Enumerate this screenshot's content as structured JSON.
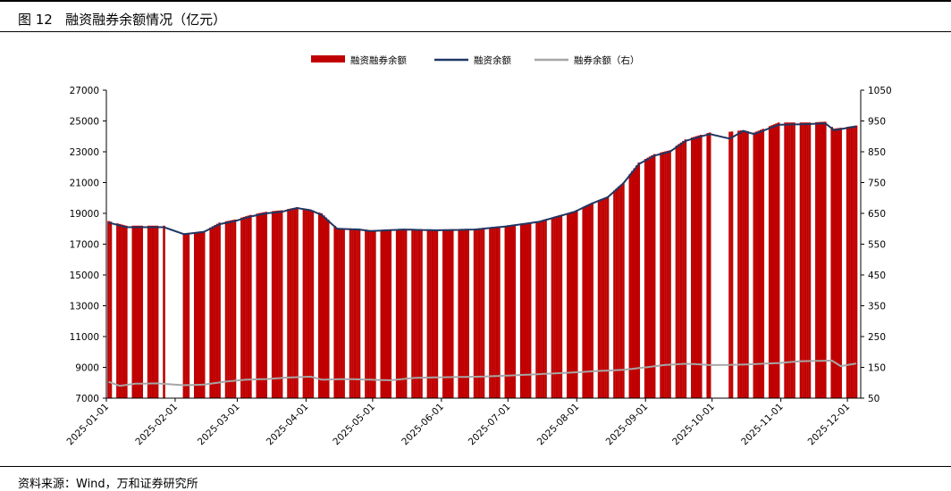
{
  "figure": {
    "title": "图 12   融资融券余额情况（亿元）",
    "source": "资料来源：Wind，万和证券研究所"
  },
  "chart_data": {
    "type": "bar+line",
    "legend": [
      "融资融券余额",
      "融资余额",
      "融券余额（右）"
    ],
    "legend_position": "top-center",
    "colors": {
      "bars": "#c00000",
      "financing_line": "#1f3864",
      "lending_line": "#a6a6a6"
    },
    "y_left": {
      "min": 7000,
      "max": 27000,
      "step": 2000,
      "ticks": [
        "7000",
        "9000",
        "11000",
        "13000",
        "15000",
        "17000",
        "19000",
        "21000",
        "23000",
        "25000",
        "27000"
      ]
    },
    "y_right": {
      "min": 50,
      "max": 1050,
      "step": 100,
      "ticks": [
        "50",
        "150",
        "250",
        "350",
        "450",
        "550",
        "650",
        "750",
        "850",
        "950",
        "1050"
      ]
    },
    "x_labels": [
      "2025-01-01",
      "2025-02-01",
      "2025-03-01",
      "2025-04-01",
      "2025-05-01",
      "2025-06-01",
      "2025-07-01",
      "2025-08-01",
      "2025-09-01",
      "2025-10-01",
      "2025-11-01",
      "2025-12-01"
    ],
    "x_range": [
      "2025-01-01",
      "2025-12-07"
    ],
    "anchors_margin_total": [
      [
        "2025-01-02",
        18500
      ],
      [
        "2025-01-10",
        18200
      ],
      [
        "2025-01-20",
        18200
      ],
      [
        "2025-01-27",
        18200
      ],
      [
        "2025-02-05",
        17700
      ],
      [
        "2025-02-14",
        17850
      ],
      [
        "2025-02-21",
        18400
      ],
      [
        "2025-02-28",
        18600
      ],
      [
        "2025-03-07",
        18900
      ],
      [
        "2025-03-14",
        19100
      ],
      [
        "2025-03-21",
        19200
      ],
      [
        "2025-03-28",
        19400
      ],
      [
        "2025-04-03",
        19250
      ],
      [
        "2025-04-08",
        19000
      ],
      [
        "2025-04-15",
        18050
      ],
      [
        "2025-04-25",
        18000
      ],
      [
        "2025-04-30",
        17900
      ],
      [
        "2025-05-15",
        18000
      ],
      [
        "2025-05-30",
        17950
      ],
      [
        "2025-06-16",
        18000
      ],
      [
        "2025-06-30",
        18200
      ],
      [
        "2025-07-15",
        18500
      ],
      [
        "2025-07-31",
        19150
      ],
      [
        "2025-08-08",
        19700
      ],
      [
        "2025-08-15",
        20100
      ],
      [
        "2025-08-22",
        21000
      ],
      [
        "2025-08-29",
        22300
      ],
      [
        "2025-09-05",
        22850
      ],
      [
        "2025-09-12",
        23100
      ],
      [
        "2025-09-19",
        23800
      ],
      [
        "2025-09-26",
        24100
      ],
      [
        "2025-09-30",
        24250
      ],
      [
        "2025-10-09",
        24300
      ],
      [
        "2025-10-15",
        24400
      ],
      [
        "2025-10-20",
        24250
      ],
      [
        "2025-10-31",
        24900
      ],
      [
        "2025-11-14",
        24900
      ],
      [
        "2025-11-21",
        24950
      ],
      [
        "2025-11-25",
        24500
      ],
      [
        "2025-12-05",
        24700
      ]
    ],
    "anchors_financing": [
      [
        "2025-01-02",
        18400
      ],
      [
        "2025-01-10",
        18100
      ],
      [
        "2025-01-20",
        18100
      ],
      [
        "2025-01-27",
        18100
      ],
      [
        "2025-02-05",
        17650
      ],
      [
        "2025-02-14",
        17800
      ],
      [
        "2025-02-21",
        18300
      ],
      [
        "2025-02-28",
        18500
      ],
      [
        "2025-03-07",
        18800
      ],
      [
        "2025-03-14",
        19000
      ],
      [
        "2025-03-21",
        19100
      ],
      [
        "2025-03-28",
        19350
      ],
      [
        "2025-04-03",
        19200
      ],
      [
        "2025-04-08",
        18900
      ],
      [
        "2025-04-15",
        18000
      ],
      [
        "2025-04-25",
        17950
      ],
      [
        "2025-04-30",
        17850
      ],
      [
        "2025-05-15",
        17950
      ],
      [
        "2025-05-30",
        17900
      ],
      [
        "2025-06-16",
        17950
      ],
      [
        "2025-06-30",
        18150
      ],
      [
        "2025-07-15",
        18450
      ],
      [
        "2025-07-31",
        19100
      ],
      [
        "2025-08-08",
        19650
      ],
      [
        "2025-08-15",
        20050
      ],
      [
        "2025-08-22",
        20950
      ],
      [
        "2025-08-29",
        22200
      ],
      [
        "2025-09-05",
        22750
      ],
      [
        "2025-09-12",
        23000
      ],
      [
        "2025-09-19",
        23700
      ],
      [
        "2025-09-26",
        24000
      ],
      [
        "2025-09-30",
        24150
      ],
      [
        "2025-10-09",
        23850
      ],
      [
        "2025-10-15",
        24350
      ],
      [
        "2025-10-20",
        24150
      ],
      [
        "2025-10-31",
        24750
      ],
      [
        "2025-11-14",
        24800
      ],
      [
        "2025-11-21",
        24850
      ],
      [
        "2025-11-25",
        24400
      ],
      [
        "2025-12-05",
        24650
      ]
    ],
    "anchors_lending_right": [
      [
        "2025-01-02",
        103
      ],
      [
        "2025-01-07",
        90
      ],
      [
        "2025-01-14",
        97
      ],
      [
        "2025-01-24",
        98
      ],
      [
        "2025-02-05",
        92
      ],
      [
        "2025-02-14",
        94
      ],
      [
        "2025-02-24",
        104
      ],
      [
        "2025-03-05",
        110
      ],
      [
        "2025-03-14",
        112
      ],
      [
        "2025-03-24",
        117
      ],
      [
        "2025-04-03",
        120
      ],
      [
        "2025-04-08",
        110
      ],
      [
        "2025-04-20",
        112
      ],
      [
        "2025-04-30",
        110
      ],
      [
        "2025-05-09",
        108
      ],
      [
        "2025-05-20",
        116
      ],
      [
        "2025-06-03",
        118
      ],
      [
        "2025-06-20",
        120
      ],
      [
        "2025-07-03",
        124
      ],
      [
        "2025-07-15",
        128
      ],
      [
        "2025-08-01",
        134
      ],
      [
        "2025-08-10",
        138
      ],
      [
        "2025-08-22",
        142
      ],
      [
        "2025-09-01",
        150
      ],
      [
        "2025-09-10",
        158
      ],
      [
        "2025-09-20",
        162
      ],
      [
        "2025-10-01",
        157
      ],
      [
        "2025-10-15",
        159
      ],
      [
        "2025-10-31",
        164
      ],
      [
        "2025-11-10",
        170
      ],
      [
        "2025-11-24",
        172
      ],
      [
        "2025-11-28",
        154
      ],
      [
        "2025-12-07",
        165
      ]
    ],
    "gaps": [
      [
        "2025-01-28",
        "2025-02-04"
      ],
      [
        "2025-10-01",
        "2025-10-08"
      ]
    ]
  }
}
